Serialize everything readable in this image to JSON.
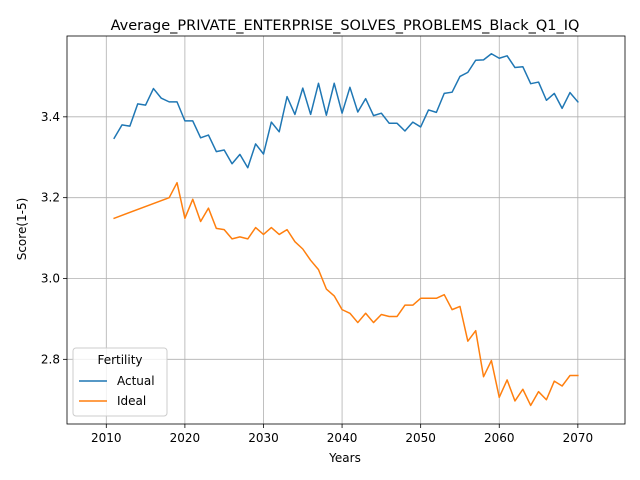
{
  "chart_data": {
    "type": "line",
    "title": "Average_PRIVATE_ENTERPRISE_SOLVES_PROBLEMS_Black_Q1_IQ",
    "xlabel": "Years",
    "ylabel": "Score(1-5)",
    "xlim": [
      2005,
      2076
    ],
    "ylim": [
      2.64,
      3.6
    ],
    "xticks": [
      2010,
      2020,
      2030,
      2040,
      2050,
      2060,
      2070
    ],
    "xtick_labels": [
      "2010",
      "2020",
      "2030",
      "2040",
      "2050",
      "2060",
      "2070"
    ],
    "yticks": [
      2.8,
      3.0,
      3.2,
      3.4
    ],
    "ytick_labels": [
      "2.8",
      "3.0",
      "3.2",
      "3.4"
    ],
    "grid": true,
    "legend": {
      "title": "Fertility",
      "placement": "lower-left"
    },
    "colors": {
      "Actual": "#1f77b4",
      "Ideal": "#ff7f0e"
    },
    "series": [
      {
        "name": "Actual",
        "x": [
          2011,
          2012,
          2013,
          2014,
          2015,
          2016,
          2017,
          2018,
          2019,
          2020,
          2021,
          2022,
          2023,
          2024,
          2025,
          2026,
          2027,
          2028,
          2029,
          2030,
          2031,
          2032,
          2033,
          2034,
          2035,
          2036,
          2037,
          2038,
          2039,
          2040,
          2041,
          2042,
          2043,
          2044,
          2045,
          2046,
          2047,
          2048,
          2049,
          2050,
          2051,
          2052,
          2053,
          2054,
          2055,
          2056,
          2057,
          2058,
          2059,
          2060,
          2061,
          2062,
          2063,
          2064,
          2065,
          2066,
          2067,
          2068,
          2069,
          2070
        ],
        "values": [
          3.347,
          3.38,
          3.377,
          3.432,
          3.429,
          3.47,
          3.446,
          3.437,
          3.437,
          3.39,
          3.39,
          3.348,
          3.355,
          3.314,
          3.318,
          3.284,
          3.307,
          3.274,
          3.333,
          3.308,
          3.387,
          3.363,
          3.45,
          3.406,
          3.471,
          3.406,
          3.483,
          3.404,
          3.483,
          3.409,
          3.473,
          3.412,
          3.445,
          3.403,
          3.409,
          3.384,
          3.384,
          3.365,
          3.387,
          3.375,
          3.417,
          3.411,
          3.458,
          3.461,
          3.5,
          3.51,
          3.54,
          3.541,
          3.556,
          3.545,
          3.551,
          3.522,
          3.524,
          3.482,
          3.486,
          3.441,
          3.458,
          3.421,
          3.46,
          3.437
        ]
      },
      {
        "name": "Ideal",
        "x": [
          2011,
          2018,
          2019,
          2020,
          2021,
          2022,
          2023,
          2024,
          2025,
          2026,
          2027,
          2028,
          2029,
          2030,
          2031,
          2032,
          2033,
          2034,
          2035,
          2036,
          2037,
          2038,
          2039,
          2040,
          2041,
          2042,
          2043,
          2044,
          2045,
          2046,
          2047,
          2048,
          2049,
          2050,
          2051,
          2052,
          2053,
          2054,
          2055,
          2056,
          2057,
          2058,
          2059,
          2060,
          2061,
          2062,
          2063,
          2064,
          2065,
          2066,
          2067,
          2068,
          2069,
          2070
        ],
        "values": [
          3.149,
          3.2,
          3.237,
          3.149,
          3.196,
          3.141,
          3.174,
          3.124,
          3.121,
          3.098,
          3.103,
          3.098,
          3.126,
          3.109,
          3.126,
          3.109,
          3.121,
          3.091,
          3.073,
          3.045,
          3.022,
          2.974,
          2.957,
          2.923,
          2.914,
          2.891,
          2.914,
          2.891,
          2.911,
          2.906,
          2.906,
          2.934,
          2.934,
          2.951,
          2.951,
          2.951,
          2.96,
          2.923,
          2.931,
          2.845,
          2.871,
          2.757,
          2.797,
          2.706,
          2.749,
          2.697,
          2.726,
          2.686,
          2.72,
          2.7,
          2.746,
          2.734,
          2.76,
          2.76
        ]
      }
    ]
  }
}
